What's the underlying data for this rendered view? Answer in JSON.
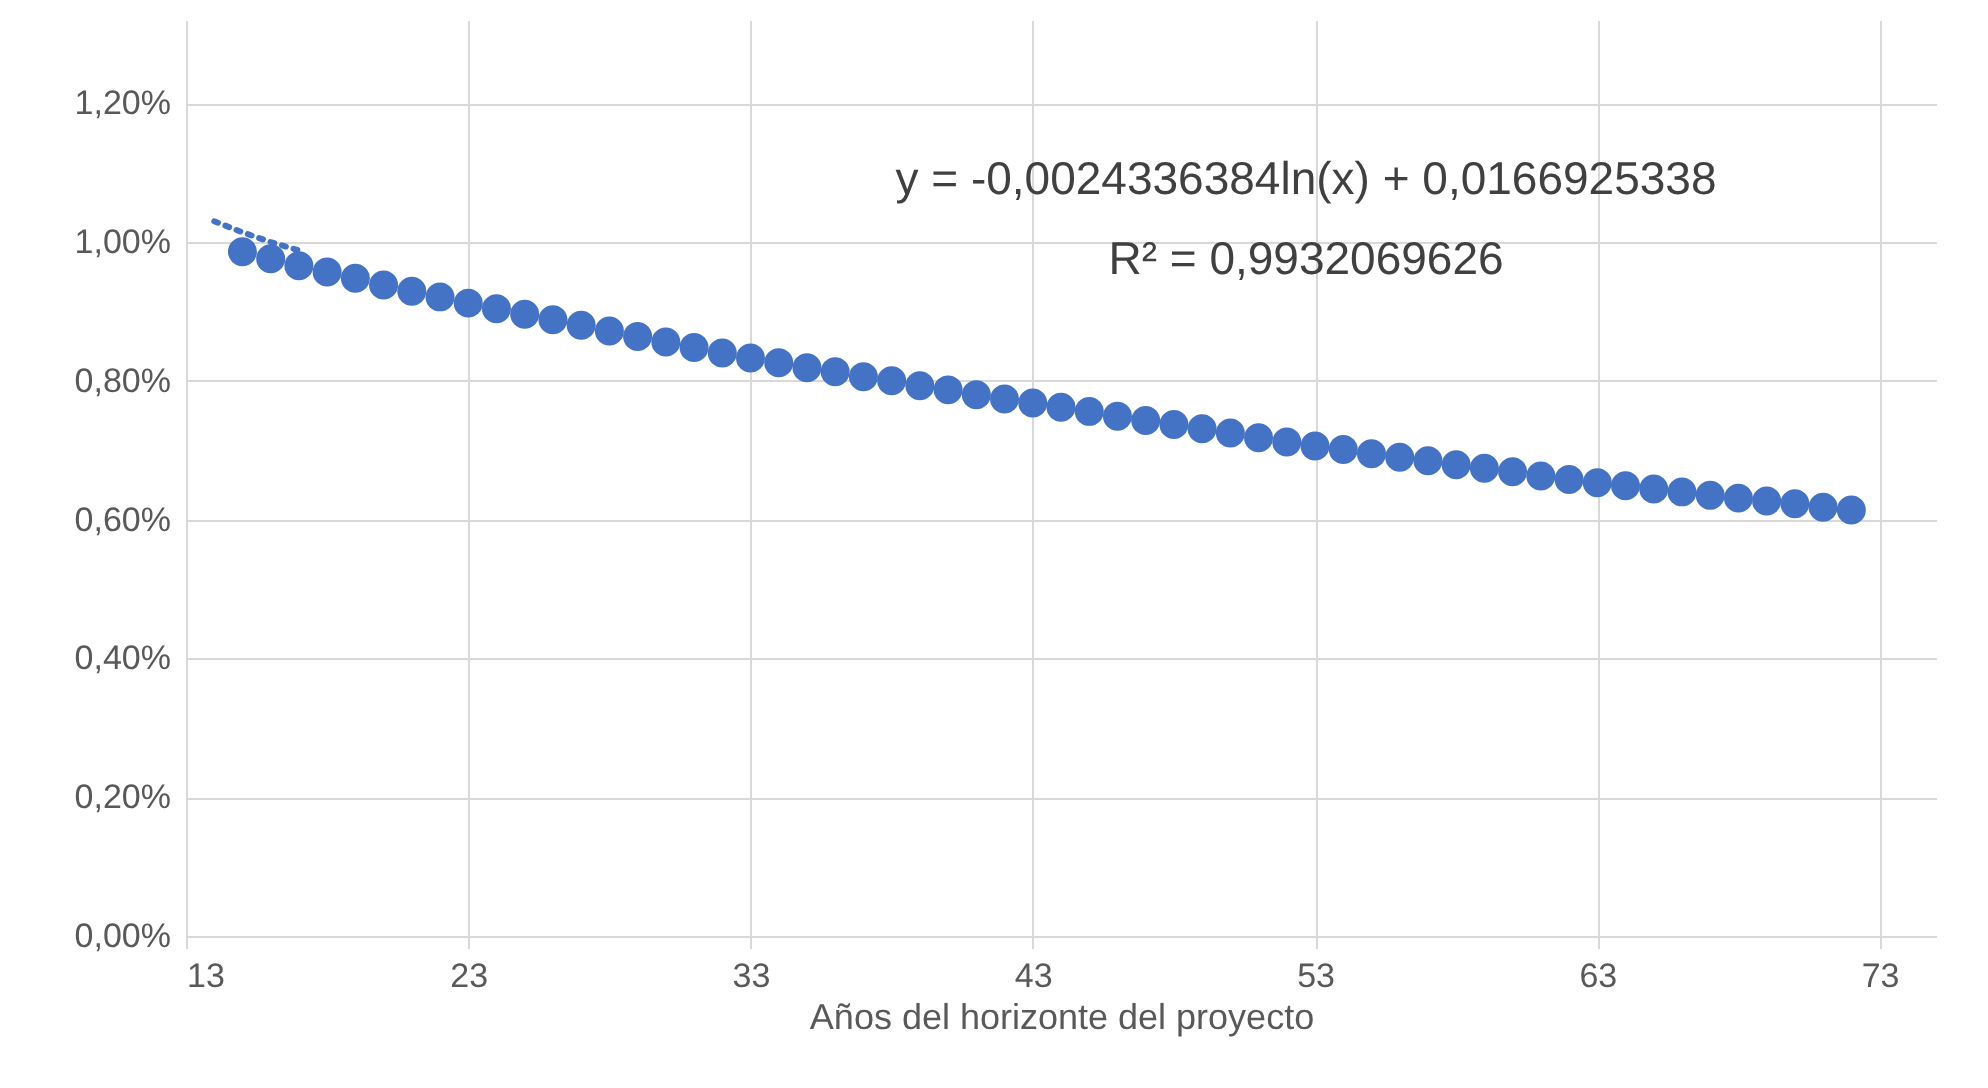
{
  "chart_data": {
    "type": "scatter",
    "xlabel": "Años del horizonte del proyecto",
    "annotations": [
      "y = -0,0024336384ln(x) + 0,0166925338",
      "R² = 0,9932069626"
    ],
    "x": [
      15,
      16,
      17,
      18,
      19,
      20,
      21,
      22,
      23,
      24,
      25,
      26,
      27,
      28,
      29,
      30,
      31,
      32,
      33,
      34,
      35,
      36,
      37,
      38,
      39,
      40,
      41,
      42,
      43,
      44,
      45,
      46,
      47,
      48,
      49,
      50,
      51,
      52,
      53,
      54,
      55,
      56,
      57,
      58,
      59,
      60,
      61,
      62,
      63,
      64,
      65,
      66,
      67,
      68,
      69,
      70,
      71,
      72
    ],
    "series": [
      {
        "color": "#4472c4",
        "marker": "circle",
        "values": [
          0.00986,
          0.00976,
          0.00966,
          0.00957,
          0.00948,
          0.00938,
          0.00929,
          0.00921,
          0.00912,
          0.00904,
          0.00896,
          0.00888,
          0.0088,
          0.00872,
          0.00864,
          0.00856,
          0.00848,
          0.0084,
          0.00833,
          0.00826,
          0.00819,
          0.00813,
          0.00806,
          0.008,
          0.00793,
          0.00787,
          0.0078,
          0.00774,
          0.00768,
          0.00762,
          0.00756,
          0.00749,
          0.00743,
          0.00737,
          0.00731,
          0.00725,
          0.00718,
          0.00712,
          0.00706,
          0.00701,
          0.00695,
          0.0069,
          0.00685,
          0.00679,
          0.00674,
          0.00669,
          0.00663,
          0.00658,
          0.00653,
          0.00649,
          0.00644,
          0.0064,
          0.00635,
          0.00631,
          0.00627,
          0.00623,
          0.00618,
          0.00614
        ]
      },
      {
        "type": "line",
        "color": "#4472c4",
        "line_style": "dotted",
        "x": [
          14,
          15,
          16,
          17
        ],
        "values": [
          0.0103,
          0.01014,
          0.01,
          0.00988
        ]
      }
    ],
    "xlim": [
      13,
      75
    ],
    "xticks": [
      13,
      23,
      33,
      43,
      53,
      63,
      73
    ],
    "ylim": [
      0,
      0.0132
    ],
    "yticks": [
      {
        "value": 0,
        "label": "0,00%"
      },
      {
        "value": 0.002,
        "label": "0,20%"
      },
      {
        "value": 0.004,
        "label": "0,40%"
      },
      {
        "value": 0.006,
        "label": "0,60%"
      },
      {
        "value": 0.008,
        "label": "0,80%"
      },
      {
        "value": 0.01,
        "label": "1,00%"
      },
      {
        "value": 0.012,
        "label": "1,20%"
      }
    ],
    "grid": true
  }
}
